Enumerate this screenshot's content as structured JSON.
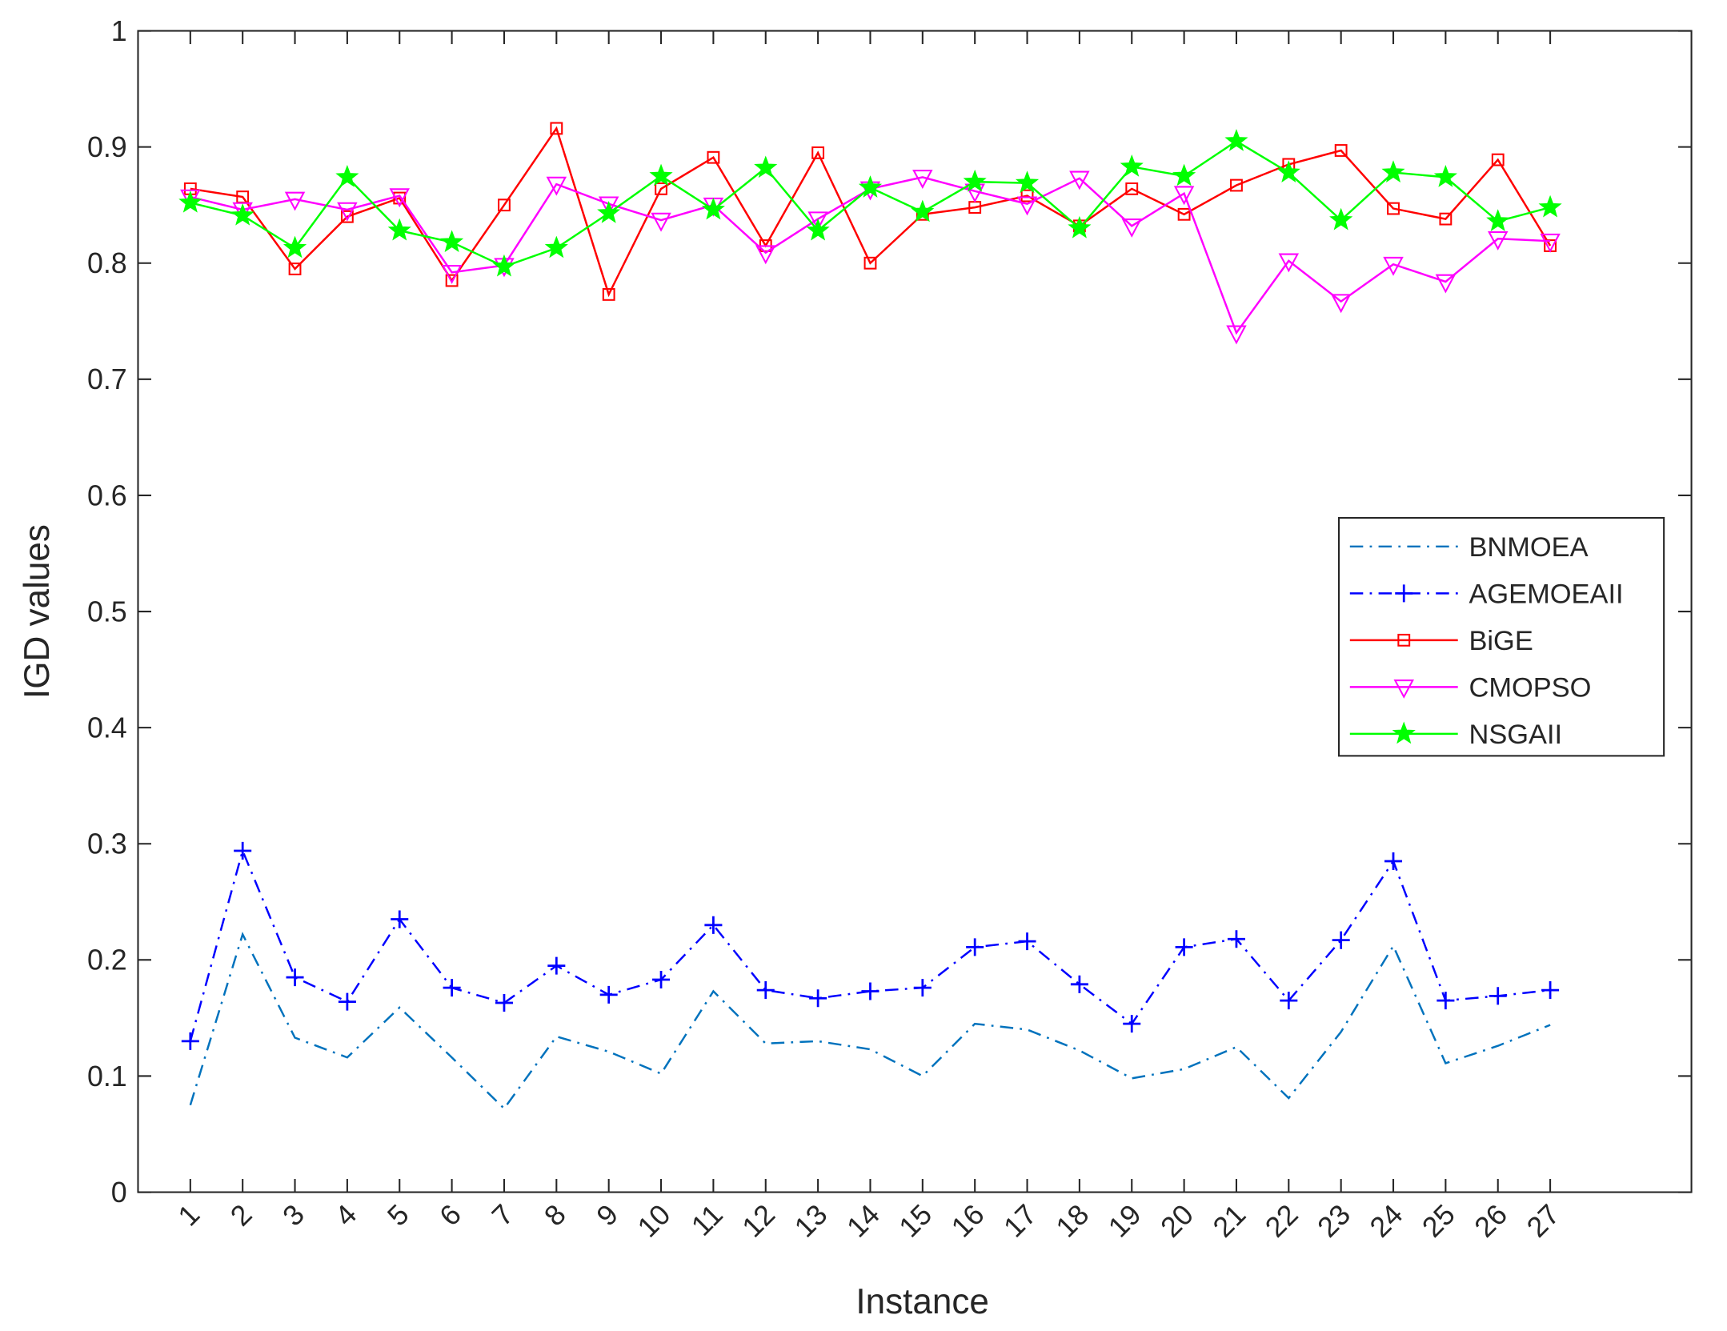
{
  "chart_data": {
    "type": "line",
    "x_label": "Instance",
    "y_label": "IGD values",
    "categories": [
      "1",
      "2",
      "3",
      "4",
      "5",
      "6",
      "7",
      "8",
      "9",
      "10",
      "11",
      "12",
      "13",
      "14",
      "15",
      "16",
      "17",
      "18",
      "19",
      "20",
      "21",
      "22",
      "23",
      "24",
      "25",
      "26",
      "27"
    ],
    "ylim": [
      0,
      1
    ],
    "yticks": [
      0,
      0.1,
      0.2,
      0.3,
      0.4,
      0.5,
      0.6,
      0.7,
      0.8,
      0.9,
      1
    ],
    "legend": "right",
    "series": [
      {
        "name": "BNMOEA",
        "color": "#0072bd",
        "linestyle": "dashdot",
        "marker": "none",
        "values": [
          0.075,
          0.222,
          0.133,
          0.116,
          0.159,
          0.116,
          0.072,
          0.134,
          0.121,
          0.102,
          0.173,
          0.128,
          0.13,
          0.123,
          0.1,
          0.145,
          0.14,
          0.122,
          0.098,
          0.106,
          0.125,
          0.081,
          0.138,
          0.212,
          0.111,
          0.126,
          0.144
        ]
      },
      {
        "name": "AGEMOEAII",
        "color": "#0000ff",
        "linestyle": "dashdot",
        "marker": "plus",
        "values": [
          0.13,
          0.294,
          0.185,
          0.164,
          0.235,
          0.176,
          0.163,
          0.195,
          0.17,
          0.183,
          0.23,
          0.174,
          0.167,
          0.173,
          0.176,
          0.211,
          0.216,
          0.179,
          0.145,
          0.211,
          0.218,
          0.165,
          0.217,
          0.285,
          0.165,
          0.169,
          0.174
        ]
      },
      {
        "name": "BiGE",
        "color": "#ff0000",
        "linestyle": "solid",
        "marker": "square",
        "values": [
          0.864,
          0.857,
          0.795,
          0.84,
          0.856,
          0.785,
          0.85,
          0.916,
          0.773,
          0.864,
          0.891,
          0.815,
          0.895,
          0.8,
          0.842,
          0.848,
          0.858,
          0.832,
          0.864,
          0.842,
          0.867,
          0.885,
          0.897,
          0.847,
          0.838,
          0.889,
          0.815
        ]
      },
      {
        "name": "CMOPSO",
        "color": "#ff00ff",
        "linestyle": "solid",
        "marker": "triangle-down",
        "values": [
          0.857,
          0.846,
          0.855,
          0.846,
          0.858,
          0.792,
          0.798,
          0.868,
          0.851,
          0.837,
          0.85,
          0.809,
          0.838,
          0.864,
          0.874,
          0.862,
          0.851,
          0.873,
          0.832,
          0.86,
          0.74,
          0.802,
          0.767,
          0.799,
          0.784,
          0.821,
          0.819
        ]
      },
      {
        "name": "NSGAII",
        "color": "#00ff00",
        "linestyle": "solid",
        "marker": "star",
        "values": [
          0.852,
          0.841,
          0.813,
          0.874,
          0.828,
          0.818,
          0.797,
          0.813,
          0.843,
          0.875,
          0.846,
          0.882,
          0.828,
          0.865,
          0.844,
          0.87,
          0.869,
          0.83,
          0.883,
          0.875,
          0.905,
          0.878,
          0.837,
          0.878,
          0.874,
          0.836,
          0.848
        ]
      }
    ]
  }
}
